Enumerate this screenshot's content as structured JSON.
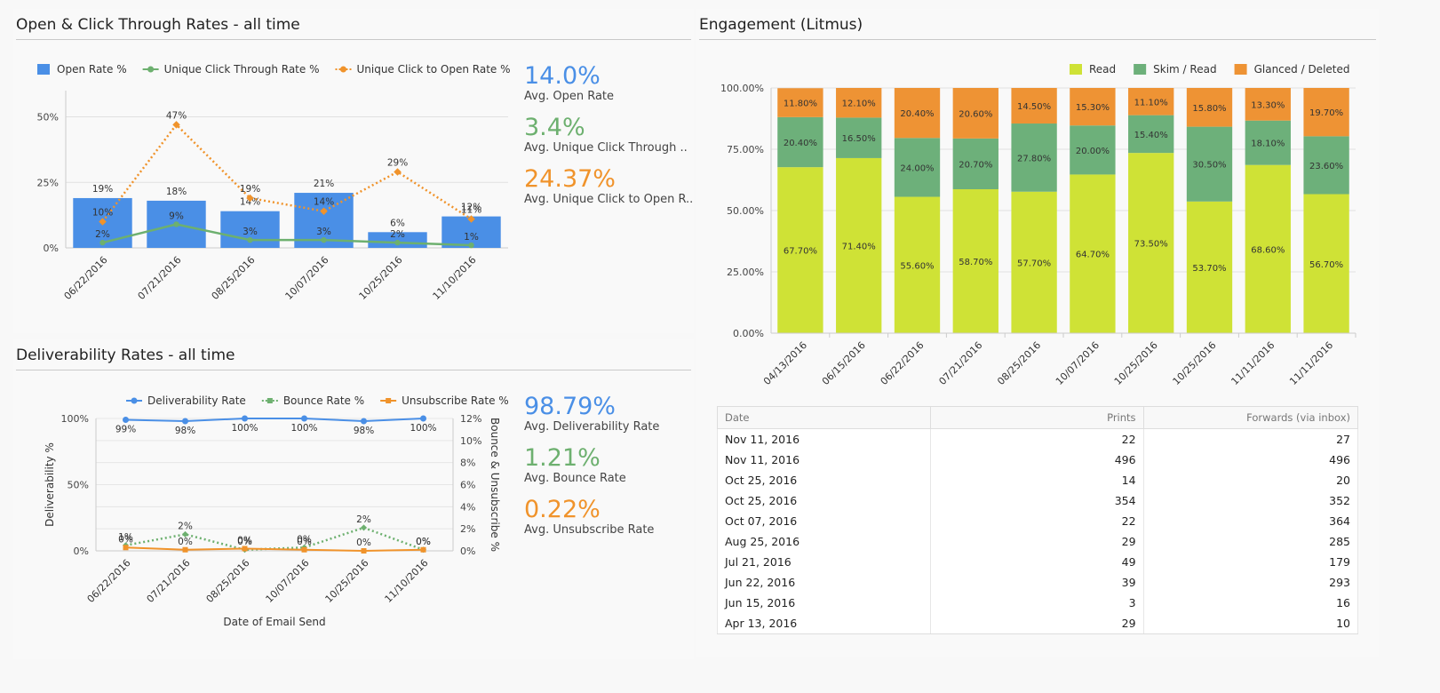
{
  "panels": {
    "open_click": {
      "title": "Open & Click Through Rates - all time"
    },
    "engagement": {
      "title": "Engagement (Litmus)"
    },
    "deliverability": {
      "title": "Deliverability Rates - all time"
    }
  },
  "kpis_open": [
    {
      "value": "14.0%",
      "label": "Avg. Open Rate",
      "color": "#4a8fe6"
    },
    {
      "value": "3.4%",
      "label": "Avg. Unique Click Through ..",
      "color": "#6db06f"
    },
    {
      "value": "24.37%",
      "label": "Avg. Unique Click to Open R..",
      "color": "#f0932b"
    }
  ],
  "kpis_deliv": [
    {
      "value": "98.79%",
      "label": "Avg. Deliverability Rate",
      "color": "#4a8fe6"
    },
    {
      "value": "1.21%",
      "label": "Avg. Bounce Rate",
      "color": "#6db06f"
    },
    {
      "value": "0.22%",
      "label": "Avg. Unsubscribe Rate",
      "color": "#f0932b"
    }
  ],
  "chart_data": [
    {
      "id": "open_click",
      "type": "bar",
      "categories": [
        "06/22/2016",
        "07/21/2016",
        "08/25/2016",
        "10/07/2016",
        "10/25/2016",
        "11/10/2016"
      ],
      "yticks": [
        "0%",
        "25%",
        "50%"
      ],
      "ylim": [
        0,
        60
      ],
      "series": [
        {
          "name": "Open Rate %",
          "kind": "bar",
          "color": "#4a8fe6",
          "values": [
            19,
            18,
            14,
            21,
            6,
            12
          ],
          "labels": [
            "19%",
            "18%",
            "14%",
            "21%",
            "6%",
            "12%"
          ]
        },
        {
          "name": "Unique Click Through Rate %",
          "kind": "line",
          "color": "#6db06f",
          "values": [
            2,
            9,
            3,
            3,
            2,
            1
          ],
          "labels": [
            "2%",
            "9%",
            "3%",
            "3%",
            "2%",
            "1%"
          ]
        },
        {
          "name": "Unique Click to Open Rate %",
          "kind": "dotted",
          "color": "#f0932b",
          "values": [
            10,
            47,
            19,
            14,
            29,
            11
          ],
          "labels": [
            "10%",
            "47%",
            "19%",
            "14%",
            "29%",
            "11%"
          ]
        }
      ]
    },
    {
      "id": "engagement",
      "type": "bar",
      "stacked": true,
      "categories": [
        "04/13/2016",
        "06/15/2016",
        "06/22/2016",
        "07/21/2016",
        "08/25/2016",
        "10/07/2016",
        "10/25/2016",
        "10/25/2016",
        "11/11/2016",
        "11/11/2016"
      ],
      "yticks": [
        "0.00%",
        "25.00%",
        "50.00%",
        "75.00%",
        "100.00%"
      ],
      "ylim": [
        0,
        100
      ],
      "series": [
        {
          "name": "Read",
          "color": "#cfe236",
          "values": [
            67.7,
            71.4,
            55.6,
            58.7,
            57.7,
            64.7,
            73.5,
            53.7,
            68.6,
            56.7
          ],
          "labels": [
            "67.70%",
            "71.40%",
            "55.60%",
            "58.70%",
            "57.70%",
            "64.70%",
            "73.50%",
            "53.70%",
            "68.60%",
            "56.70%"
          ]
        },
        {
          "name": "Skim / Read",
          "color": "#6db07a",
          "values": [
            20.4,
            16.5,
            24.0,
            20.7,
            27.8,
            20.0,
            15.4,
            30.5,
            18.1,
            23.6
          ],
          "labels": [
            "20.40%",
            "16.50%",
            "24.00%",
            "20.70%",
            "27.80%",
            "20.00%",
            "15.40%",
            "30.50%",
            "18.10%",
            "23.60%"
          ]
        },
        {
          "name": "Glanced / Deleted",
          "color": "#ee9334",
          "values": [
            11.8,
            12.1,
            20.4,
            20.6,
            14.5,
            15.3,
            11.1,
            15.8,
            13.3,
            19.7
          ],
          "labels": [
            "11.80%",
            "12.10%",
            "20.40%",
            "20.60%",
            "14.50%",
            "15.30%",
            "11.10%",
            "15.80%",
            "13.30%",
            "19.70%"
          ]
        }
      ]
    },
    {
      "id": "deliverability",
      "type": "line",
      "categories": [
        "06/22/2016",
        "07/21/2016",
        "08/25/2016",
        "10/07/2016",
        "10/25/2016",
        "11/10/2016"
      ],
      "xlabel": "Date of Email Send",
      "ylabel": "Deliverability %",
      "y2label": "Bounce & Unsubscribe %",
      "yticks": [
        "0%",
        "50%",
        "100%"
      ],
      "y2ticks": [
        "0%",
        "2%",
        "4%",
        "6%",
        "8%",
        "10%",
        "12%"
      ],
      "ylim": [
        0,
        100
      ],
      "y2lim": [
        0,
        12
      ],
      "series": [
        {
          "name": "Deliverability Rate",
          "axis": "left",
          "kind": "line",
          "color": "#4a8fe6",
          "values": [
            99,
            98,
            100,
            100,
            98,
            100
          ],
          "labels": [
            "99%",
            "98%",
            "100%",
            "100%",
            "98%",
            "100%"
          ]
        },
        {
          "name": "Bounce Rate %",
          "axis": "right",
          "kind": "dotted",
          "color": "#6db06f",
          "values": [
            0.5,
            1.5,
            0.1,
            0.3,
            2.1,
            0.1
          ],
          "labels": [
            "1%",
            "2%",
            "0%",
            "0%",
            "2%",
            "0%"
          ]
        },
        {
          "name": "Unsubscribe Rate %",
          "axis": "right",
          "kind": "line",
          "color": "#f0932b",
          "values": [
            0.3,
            0.1,
            0.2,
            0.1,
            0.0,
            0.1
          ],
          "labels": [
            "0%",
            "0%",
            "0%",
            "0%",
            "0%",
            "0%"
          ]
        }
      ]
    },
    {
      "id": "prints_table",
      "type": "table",
      "columns": [
        "Date",
        "Prints",
        "Forwards (via inbox)"
      ],
      "rows": [
        [
          "Nov 11, 2016",
          "22",
          "27"
        ],
        [
          "Nov 11, 2016",
          "496",
          "496"
        ],
        [
          "Oct 25, 2016",
          "14",
          "20"
        ],
        [
          "Oct 25, 2016",
          "354",
          "352"
        ],
        [
          "Oct 07, 2016",
          "22",
          "364"
        ],
        [
          "Aug 25, 2016",
          "29",
          "285"
        ],
        [
          "Jul 21, 2016",
          "49",
          "179"
        ],
        [
          "Jun 22, 2016",
          "39",
          "293"
        ],
        [
          "Jun 15, 2016",
          "3",
          "16"
        ],
        [
          "Apr 13, 2016",
          "29",
          "10"
        ]
      ]
    }
  ]
}
